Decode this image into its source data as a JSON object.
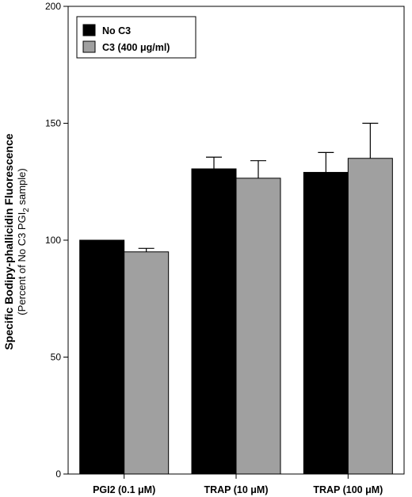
{
  "chart_data": {
    "type": "bar",
    "categories": [
      "PGI2 (0.1 μM)",
      "TRAP (10 μM)",
      "TRAP (100 μM)"
    ],
    "series": [
      {
        "name": "No C3",
        "values": [
          100,
          130.5,
          129
        ],
        "errors": [
          0,
          5,
          8.5
        ],
        "color": "#000000"
      },
      {
        "name": "C3 (400 μg/ml)",
        "values": [
          95,
          126.5,
          135
        ],
        "errors": [
          1.5,
          7.5,
          15
        ],
        "color": "#a0a0a0"
      }
    ],
    "ylabel": "Specific Bodipy-phallicidin Fluorescence",
    "ylabel_sub_parts": [
      "(Percent of No C3 PGI",
      "2",
      " sample)"
    ],
    "ylim": [
      0,
      200
    ],
    "yticks": [
      0,
      50,
      100,
      150,
      200
    ],
    "legend_position": "top-left",
    "grid": false
  }
}
